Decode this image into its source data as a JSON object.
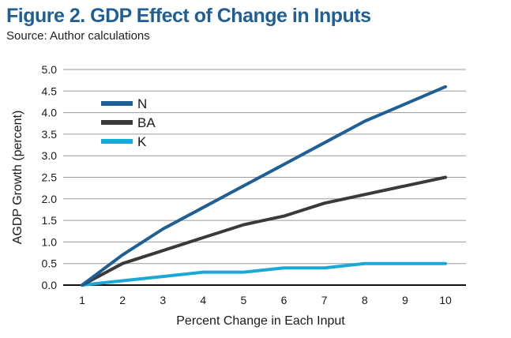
{
  "header": {
    "title": "Figure 2. GDP Effect of Change in Inputs",
    "subtitle": "Source: Author calculations"
  },
  "colors": {
    "title": "#1f5f94",
    "N": "#1f5f94",
    "BA": "#3a3a3a",
    "K": "#1aa9d6",
    "grid": "#9a9a9a",
    "axis": "#111111"
  },
  "chart_data": {
    "type": "line",
    "xlabel": "Percent Change in Each Input",
    "ylabel": "AGDP Growth (percent)",
    "x": [
      1,
      2,
      3,
      4,
      5,
      6,
      7,
      8,
      9,
      10
    ],
    "xticks": [
      "1",
      "2",
      "3",
      "4",
      "5",
      "6",
      "7",
      "8",
      "9",
      "10"
    ],
    "yticks": [
      "0.0",
      "0.5",
      "1.0",
      "1.5",
      "2.0",
      "2.5",
      "3.0",
      "3.5",
      "4.0",
      "4.5",
      "5.0"
    ],
    "ylim": [
      0,
      5
    ],
    "grid": true,
    "legend_position": "top-left",
    "series": [
      {
        "name": "N",
        "color": "#1f5f94",
        "values": [
          0,
          0.7,
          1.3,
          1.8,
          2.3,
          2.8,
          3.3,
          3.8,
          4.2,
          4.6
        ]
      },
      {
        "name": "BA",
        "color": "#3a3a3a",
        "values": [
          0,
          0.5,
          0.8,
          1.1,
          1.4,
          1.6,
          1.9,
          2.1,
          2.3,
          2.5
        ]
      },
      {
        "name": "K",
        "color": "#1aa9d6",
        "values": [
          0,
          0.1,
          0.2,
          0.3,
          0.3,
          0.4,
          0.4,
          0.5,
          0.5,
          0.5
        ]
      }
    ]
  }
}
